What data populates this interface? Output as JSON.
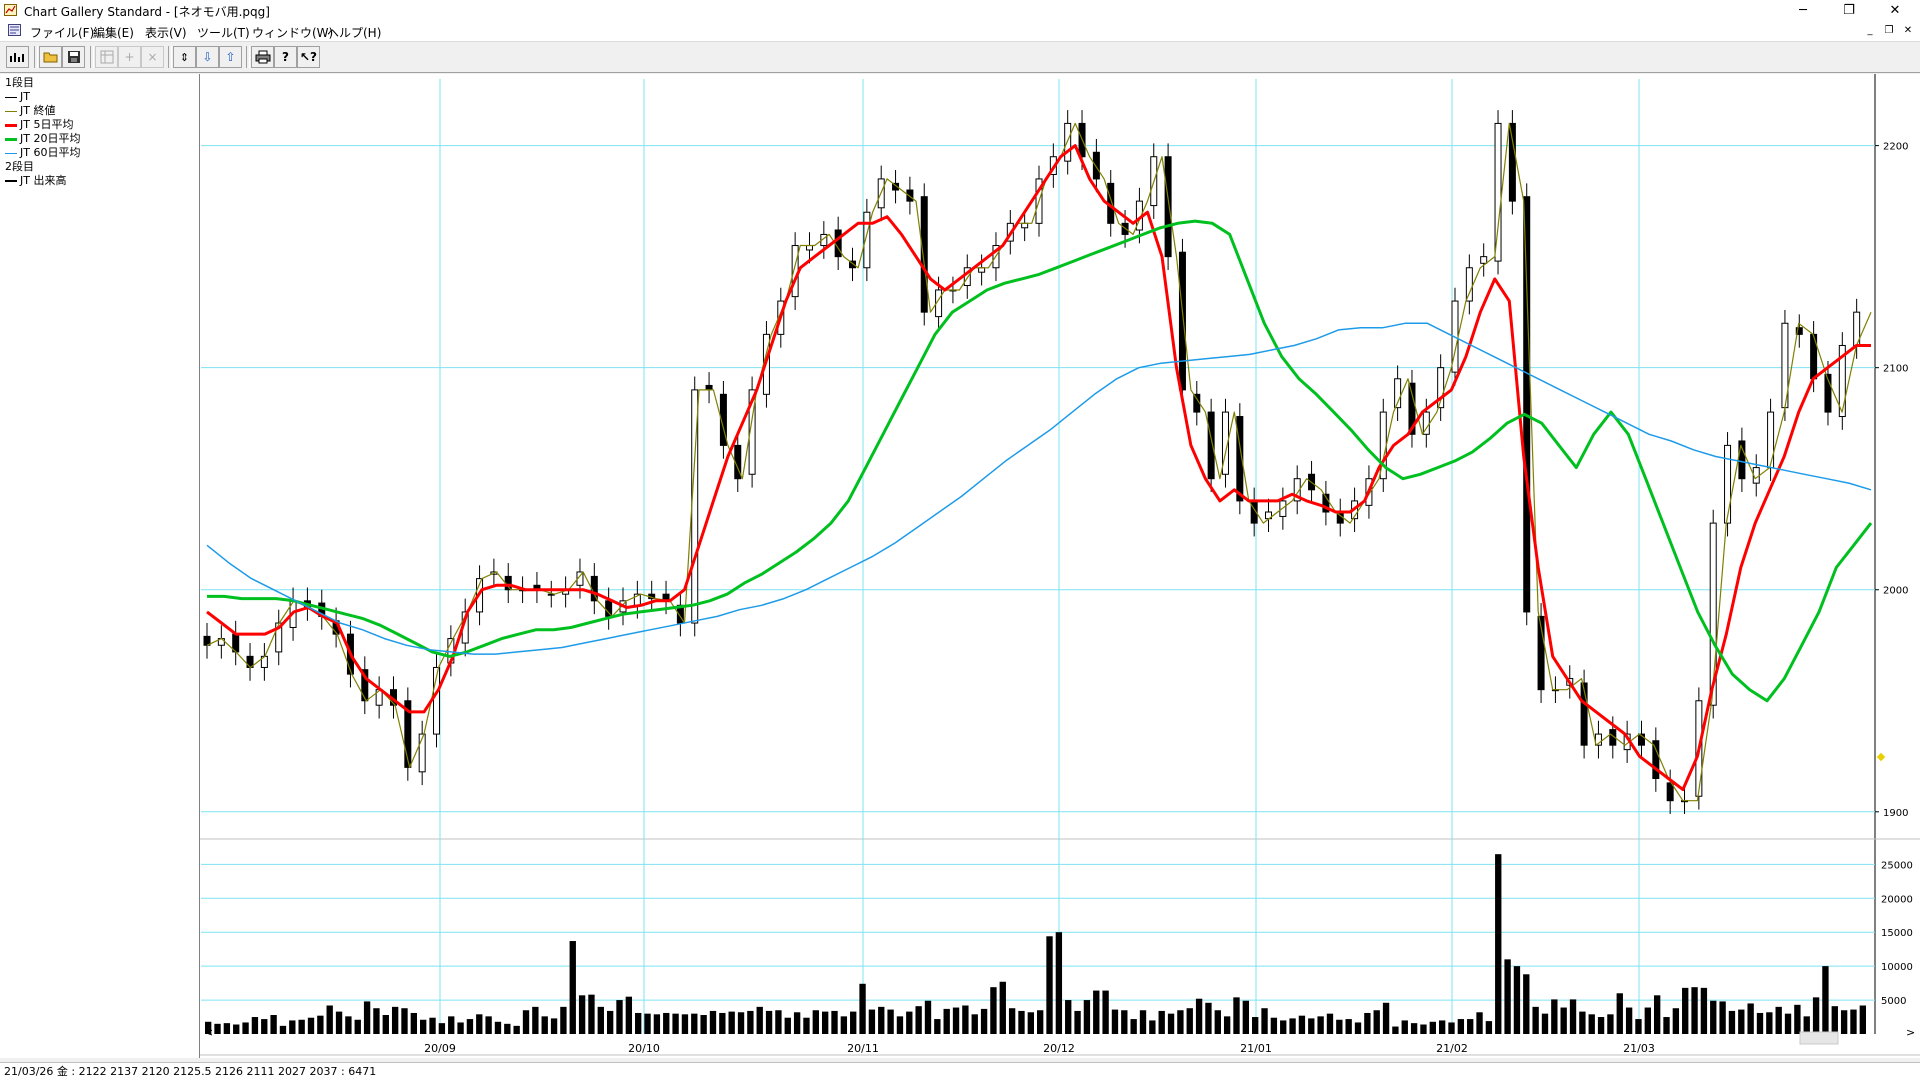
{
  "window": {
    "title": "Chart Gallery Standard - [ネオモバ用.pqg]",
    "minimize": "─",
    "restore": "❐",
    "close": "✕"
  },
  "menu": {
    "items": [
      "ファイル(F)",
      "編集(E)",
      "表示(V)",
      "ツール(T)",
      "ウィンドウ(W)",
      "ヘルプ(H)"
    ],
    "mdi_minimize": "_",
    "mdi_restore": "❐",
    "mdi_close": "✕"
  },
  "legend": {
    "section1": "1段目",
    "section2": "2段目",
    "items": [
      {
        "label": "JT",
        "color": "#000000"
      },
      {
        "label": "JT 終値",
        "color": "#808000"
      },
      {
        "label": "JT 5日平均",
        "color": "#ff0000"
      },
      {
        "label": "JT 20日平均",
        "color": "#00c020"
      },
      {
        "label": "JT 60日平均",
        "color": "#1e9be8"
      }
    ],
    "items2": [
      {
        "label": "JT 出来高",
        "color": "#000000"
      }
    ]
  },
  "status": {
    "text": "21/03/26 金 : 2122 2137 2120 2125.5  2126 2111 2027 2037 : 6471"
  },
  "chart_data": [
    {
      "type": "line",
      "subtype": "candlestick",
      "x_labels": [
        "20/09",
        "20/10",
        "20/11",
        "20/12",
        "21/01",
        "21/02",
        "21/03"
      ],
      "y_ticks": [
        1900,
        2000,
        2100,
        2200
      ],
      "ylim": [
        1890,
        2230
      ],
      "series": [
        {
          "name": "JT 終値",
          "color": "#808000",
          "values": [
            1975,
            1978,
            1972,
            1965,
            1970,
            1985,
            1995,
            1992,
            1988,
            1980,
            1962,
            1950,
            1955,
            1948,
            1920,
            1935,
            1965,
            1978,
            1990,
            2005,
            2008,
            2000,
            2000,
            2000,
            1998,
            2000,
            2008,
            1995,
            1988,
            1995,
            1998,
            1996,
            1995,
            1985,
            2090,
            2090,
            2065,
            2050,
            2090,
            2115,
            2130,
            2155,
            2155,
            2160,
            2150,
            2145,
            2170,
            2185,
            2180,
            2175,
            2125,
            2135,
            2135,
            2145,
            2145,
            2155,
            2165,
            2165,
            2185,
            2195,
            2210,
            2195,
            2185,
            2165,
            2160,
            2175,
            2195,
            2150,
            2090,
            2080,
            2050,
            2080,
            2040,
            2030,
            2035,
            2040,
            2050,
            2045,
            2035,
            2030,
            2040,
            2050,
            2080,
            2095,
            2070,
            2080,
            2100,
            2130,
            2145,
            2150,
            2210,
            2175,
            1990,
            1955,
            1955,
            1960,
            1930,
            1935,
            1930,
            1935,
            1930,
            1915,
            1905,
            1905,
            1950,
            2030,
            2065,
            2050,
            2055,
            2080,
            2120,
            2115,
            2095,
            2080,
            2110,
            2125
          ]
        },
        {
          "name": "JT 5日平均",
          "color": "#ff0000",
          "values": [
            1990,
            1985,
            1980,
            1980,
            1980,
            1983,
            1990,
            1992,
            1988,
            1985,
            1970,
            1960,
            1955,
            1950,
            1945,
            1945,
            1955,
            1970,
            1990,
            2000,
            2002,
            2002,
            2000,
            2000,
            2000,
            2000,
            2000,
            1998,
            1995,
            1992,
            1993,
            1995,
            1995,
            2000,
            2020,
            2040,
            2060,
            2075,
            2090,
            2110,
            2130,
            2145,
            2150,
            2155,
            2160,
            2165,
            2165,
            2168,
            2160,
            2150,
            2140,
            2135,
            2140,
            2145,
            2150,
            2155,
            2165,
            2175,
            2185,
            2195,
            2200,
            2185,
            2175,
            2170,
            2165,
            2170,
            2150,
            2100,
            2065,
            2050,
            2040,
            2045,
            2040,
            2040,
            2040,
            2043,
            2040,
            2038,
            2035,
            2035,
            2040,
            2055,
            2065,
            2070,
            2080,
            2085,
            2090,
            2105,
            2125,
            2140,
            2130,
            2060,
            2010,
            1970,
            1960,
            1950,
            1945,
            1940,
            1935,
            1925,
            1920,
            1915,
            1910,
            1925,
            1955,
            1980,
            2010,
            2030,
            2045,
            2060,
            2080,
            2095,
            2100,
            2105,
            2110,
            2110
          ]
        },
        {
          "name": "JT 20日平均",
          "color": "#00c020",
          "values": [
            1997,
            1997,
            1996,
            1996,
            1996,
            1995,
            1993,
            1991,
            1989,
            1987,
            1984,
            1980,
            1976,
            1972,
            1970,
            1972,
            1975,
            1978,
            1980,
            1982,
            1982,
            1983,
            1985,
            1987,
            1989,
            1990,
            1991,
            1992,
            1993,
            1995,
            1998,
            2003,
            2007,
            2012,
            2017,
            2023,
            2030,
            2040,
            2055,
            2070,
            2085,
            2100,
            2115,
            2125,
            2130,
            2135,
            2138,
            2140,
            2142,
            2145,
            2148,
            2151,
            2154,
            2157,
            2160,
            2163,
            2165,
            2166,
            2165,
            2160,
            2140,
            2120,
            2105,
            2095,
            2088,
            2080,
            2072,
            2063,
            2055,
            2050,
            2052,
            2055,
            2058,
            2062,
            2068,
            2075,
            2079,
            2075,
            2065,
            2055,
            2070,
            2080,
            2070,
            2050,
            2030,
            2010,
            1990,
            1975,
            1962,
            1955,
            1950,
            1960,
            1975,
            1990,
            2010,
            2020,
            2030
          ]
        },
        {
          "name": "JT 60日平均",
          "color": "#1e9be8",
          "values": [
            2020,
            2012,
            2005,
            2000,
            1995,
            1990,
            1985,
            1982,
            1978,
            1975,
            1973,
            1972,
            1971,
            1971,
            1972,
            1973,
            1974,
            1976,
            1978,
            1980,
            1982,
            1984,
            1986,
            1988,
            1991,
            1993,
            1996,
            2000,
            2005,
            2010,
            2015,
            2021,
            2028,
            2035,
            2042,
            2050,
            2058,
            2065,
            2072,
            2080,
            2088,
            2095,
            2100,
            2102,
            2103,
            2104,
            2105,
            2106,
            2108,
            2110,
            2113,
            2117,
            2118,
            2118,
            2120,
            2120,
            2115,
            2110,
            2105,
            2100,
            2095,
            2090,
            2085,
            2080,
            2075,
            2070,
            2067,
            2063,
            2060,
            2058,
            2056,
            2054,
            2052,
            2050,
            2048,
            2045
          ]
        }
      ]
    },
    {
      "type": "bar",
      "name": "JT 出来高",
      "y_ticks": [
        5000,
        10000,
        15000,
        20000,
        25000
      ],
      "ylim": [
        0,
        28000
      ],
      "values": [
        1800,
        1500,
        1600,
        1400,
        1700,
        2500,
        2200,
        2800,
        1200,
        2000,
        2100,
        2400,
        2700,
        4200,
        3300,
        2600,
        2100,
        4800,
        3800,
        2800,
        4000,
        3800,
        3100,
        2100,
        2400,
        1600,
        2600,
        1700,
        2200,
        2900,
        2600,
        1800,
        1500,
        1200,
        3500,
        4000,
        2600,
        2300,
        4000,
        13700,
        5700,
        5800,
        4000,
        3400,
        5000,
        5500,
        3100,
        3000,
        2900,
        3100,
        3000,
        2900,
        3000,
        2800,
        3400,
        3100,
        3300,
        3200,
        3400,
        4000,
        3400,
        3500,
        2400,
        3200,
        2400,
        3500,
        3300,
        3400,
        2600,
        3300,
        7400,
        3600,
        4000,
        3600,
        2600,
        3300,
        4100,
        4900,
        2200,
        3700,
        3900,
        4200,
        2900,
        3700,
        6900,
        7700,
        3800,
        3400,
        3200,
        3500,
        14400,
        15000,
        5000,
        3400,
        5000,
        6400,
        6400,
        3600,
        3500,
        2200,
        3500,
        2000,
        3400,
        3000,
        3500,
        3800,
        5200,
        4600,
        3500,
        2600,
        5400,
        4900,
        2500,
        3800,
        2400,
        2000,
        2300,
        2700,
        2300,
        2600,
        3000,
        2100,
        2200,
        1700,
        3100,
        3500,
        4600,
        1100,
        2000,
        1600,
        1400,
        1800,
        2000,
        1700,
        2200,
        2200,
        3200,
        1900,
        26500,
        11000,
        10000,
        8800,
        4000,
        3000,
        5100,
        3900,
        5100,
        3300,
        2900,
        2500,
        2900,
        6000,
        3900,
        2200,
        3900,
        5700,
        2500,
        3800,
        6800,
        6900,
        6800,
        4900,
        4800,
        3400,
        3600,
        4500,
        3100,
        3200,
        4000,
        3000,
        4300,
        2600,
        5400,
        10000,
        4100,
        3500,
        3600,
        4200
      ]
    }
  ]
}
